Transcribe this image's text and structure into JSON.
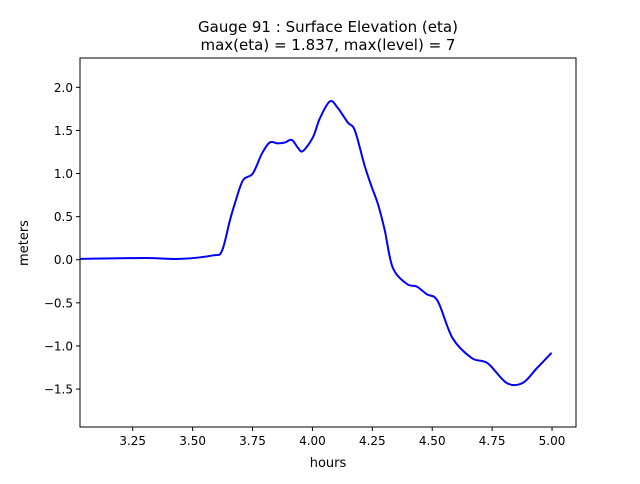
{
  "chart_data": {
    "type": "line",
    "title_line1": "Gauge 91 : Surface Elevation (eta)",
    "title_line2": "max(eta) =   1.837,    max(level) = 7",
    "xlabel": "hours",
    "ylabel": "meters",
    "xlim": [
      3.03,
      5.1
    ],
    "ylim": [
      -1.94,
      2.34
    ],
    "xticks": [
      3.25,
      3.5,
      3.75,
      4.0,
      4.25,
      4.5,
      4.75,
      5.0
    ],
    "xtick_labels": [
      "3.25",
      "3.50",
      "3.75",
      "4.00",
      "4.25",
      "4.50",
      "4.75",
      "5.00"
    ],
    "yticks": [
      2.0,
      1.5,
      1.0,
      0.5,
      0.0,
      -0.5,
      -1.0,
      -1.5
    ],
    "ytick_labels": [
      "2.0",
      "1.5",
      "1.0",
      "0.5",
      "0.0",
      "−0.5",
      "−1.0",
      "−1.5"
    ],
    "grid": false,
    "series": [
      {
        "name": "eta",
        "color": "#0000ff",
        "x": [
          3.03,
          3.3,
          3.447,
          3.585,
          3.622,
          3.655,
          3.676,
          3.71,
          3.751,
          3.789,
          3.822,
          3.856,
          3.885,
          3.914,
          3.939,
          3.96,
          4.002,
          4.031,
          4.073,
          4.106,
          4.148,
          4.177,
          4.218,
          4.248,
          4.273,
          4.302,
          4.335,
          4.394,
          4.435,
          4.477,
          4.523,
          4.585,
          4.665,
          4.731,
          4.811,
          4.877,
          4.936,
          4.998
        ],
        "y": [
          0.01,
          0.02,
          0.01,
          0.05,
          0.1,
          0.45,
          0.65,
          0.92,
          1.0,
          1.23,
          1.36,
          1.35,
          1.36,
          1.39,
          1.3,
          1.26,
          1.42,
          1.64,
          1.837,
          1.76,
          1.59,
          1.5,
          1.09,
          0.84,
          0.65,
          0.34,
          -0.09,
          -0.28,
          -0.31,
          -0.4,
          -0.48,
          -0.91,
          -1.14,
          -1.2,
          -1.43,
          -1.43,
          -1.26,
          -1.08
        ]
      }
    ]
  }
}
